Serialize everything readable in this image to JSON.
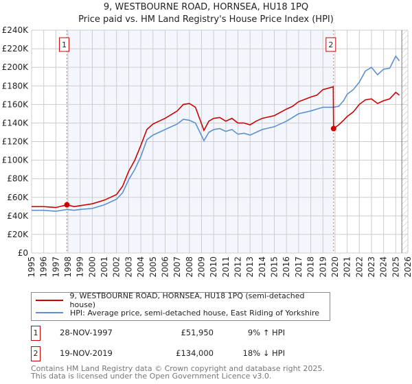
{
  "title": "9, WESTBOURNE ROAD, HORNSEA, HU18 1PQ",
  "subtitle": "Price paid vs. HM Land Registry's House Price Index (HPI)",
  "chart_data": {
    "type": "line",
    "ylim": [
      0,
      240000
    ],
    "xlim": [
      1995,
      2026
    ],
    "y_ticks": [
      "£0",
      "£20K",
      "£40K",
      "£60K",
      "£80K",
      "£100K",
      "£120K",
      "£140K",
      "£160K",
      "£180K",
      "£200K",
      "£220K",
      "£240K"
    ],
    "x_ticks": [
      "1995",
      "1996",
      "1997",
      "1998",
      "1999",
      "2000",
      "2001",
      "2002",
      "2003",
      "2004",
      "2005",
      "2006",
      "2007",
      "2008",
      "2009",
      "2010",
      "2011",
      "2012",
      "2013",
      "2014",
      "2015",
      "2016",
      "2017",
      "2018",
      "2019",
      "2020",
      "2021",
      "2022",
      "2023",
      "2024",
      "2025",
      "2026"
    ],
    "shaded_range": [
      1997.91,
      2019.88
    ],
    "forecast_hatch_from": 2025.5,
    "series": [
      {
        "name": "9, WESTBOURNE ROAD, HORNSEA, HU18 1PQ (semi-detached house)",
        "color": "#cc0000",
        "x": [
          1995,
          1996,
          1997,
          1997.91,
          1998.5,
          1999,
          2000,
          2001,
          2002,
          2002.5,
          2003,
          2003.5,
          2004,
          2004.5,
          2005,
          2006,
          2007,
          2007.5,
          2008,
          2008.5,
          2009.2,
          2009.6,
          2010,
          2010.5,
          2011,
          2011.5,
          2012,
          2012.5,
          2013,
          2013.5,
          2014,
          2015,
          2016,
          2016.5,
          2017,
          2018,
          2018.5,
          2019,
          2019.85,
          2019.88,
          2020.3,
          2020.7,
          2021,
          2021.5,
          2022,
          2022.5,
          2023,
          2023.5,
          2024,
          2024.5,
          2025,
          2025.3
        ],
        "y": [
          50000,
          50000,
          49000,
          51950,
          50000,
          51000,
          53000,
          57000,
          63000,
          72000,
          88000,
          100000,
          116000,
          133000,
          139000,
          145000,
          153000,
          160000,
          161000,
          157000,
          132000,
          142000,
          145000,
          146000,
          142000,
          145000,
          140000,
          140000,
          138000,
          142000,
          145000,
          148000,
          155000,
          158000,
          163000,
          168000,
          170000,
          176000,
          179000,
          134000,
          138000,
          143000,
          147000,
          152000,
          160000,
          165000,
          166000,
          161000,
          164000,
          166000,
          173000,
          170000
        ]
      },
      {
        "name": "HPI: Average price, semi-detached house, East Riding of Yorkshire",
        "color": "#5b8fd0",
        "x": [
          1995,
          1996,
          1997,
          1997.91,
          1998.5,
          1999,
          2000,
          2001,
          2002,
          2002.5,
          2003,
          2003.5,
          2004,
          2004.5,
          2005,
          2006,
          2007,
          2007.5,
          2008,
          2008.5,
          2009.2,
          2009.6,
          2010,
          2010.5,
          2011,
          2011.5,
          2012,
          2012.5,
          2013,
          2013.5,
          2014,
          2015,
          2016,
          2016.5,
          2017,
          2018,
          2018.5,
          2019,
          2019.88,
          2020.3,
          2020.7,
          2021,
          2021.5,
          2022,
          2022.5,
          2023,
          2023.5,
          2024,
          2024.5,
          2025,
          2025.3
        ],
        "y": [
          46000,
          46000,
          45000,
          47000,
          46000,
          47000,
          48000,
          52000,
          58000,
          65000,
          79000,
          90000,
          104000,
          122000,
          127000,
          133000,
          139000,
          144000,
          143000,
          140000,
          121000,
          130000,
          133000,
          134000,
          131000,
          133000,
          128000,
          129000,
          127000,
          130000,
          133000,
          136000,
          142000,
          146000,
          150000,
          153000,
          155000,
          157000,
          157000,
          158000,
          164000,
          171000,
          176000,
          184000,
          196000,
          200000,
          192000,
          198000,
          199000,
          212000,
          207000
        ]
      }
    ],
    "markers": [
      {
        "label": "1",
        "x": 1997.91,
        "y": 51950
      },
      {
        "label": "2",
        "x": 2019.88,
        "y": 134000
      }
    ]
  },
  "legend": [
    "9, WESTBOURNE ROAD, HORNSEA, HU18 1PQ (semi-detached house)",
    "HPI: Average price, semi-detached house, East Riding of Yorkshire"
  ],
  "transactions": [
    {
      "num": "1",
      "date": "28-NOV-1997",
      "price": "£51,950",
      "hpi": "9% ↑ HPI"
    },
    {
      "num": "2",
      "date": "19-NOV-2019",
      "price": "£134,000",
      "hpi": "18% ↓ HPI"
    }
  ],
  "footer": [
    "Contains HM Land Registry data © Crown copyright and database right 2025.",
    "This data is licensed under the Open Government Licence v3.0."
  ]
}
